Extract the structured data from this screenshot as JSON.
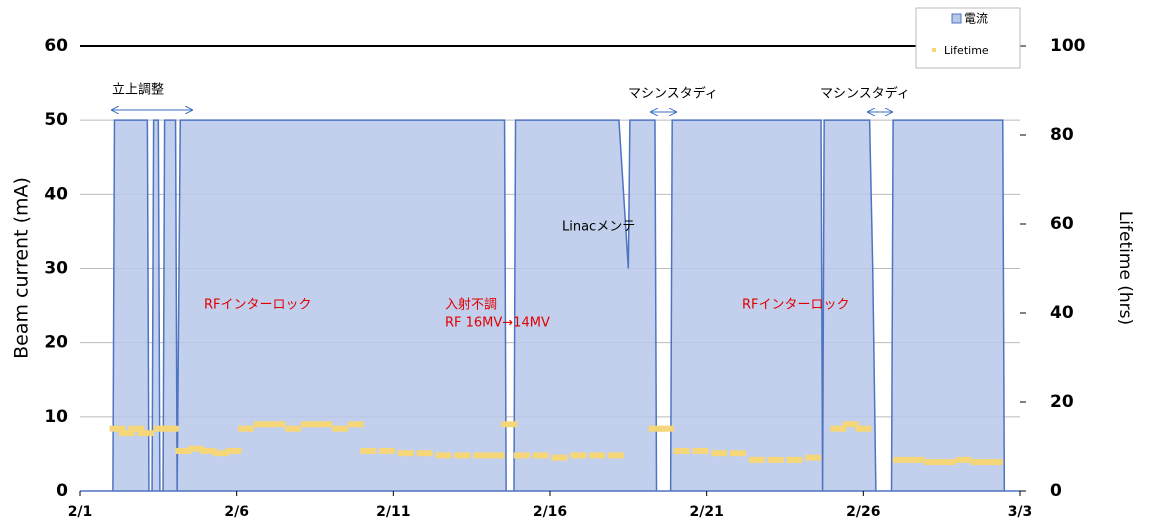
{
  "chart_data": {
    "type": "area",
    "y_label": "Beam current (mA)",
    "y2_label": "Lifetime (hrs)",
    "xlim": [
      0,
      30
    ],
    "xticks": [
      {
        "value": 0,
        "label": "2/1"
      },
      {
        "value": 5,
        "label": "2/6"
      },
      {
        "value": 10,
        "label": "2/11"
      },
      {
        "value": 15,
        "label": "2/16"
      },
      {
        "value": 20,
        "label": "2/21"
      },
      {
        "value": 25,
        "label": "2/26"
      },
      {
        "value": 30,
        "label": "3/3"
      }
    ],
    "ylim": [
      0,
      60
    ],
    "yticks": [
      0,
      10,
      20,
      30,
      40,
      50,
      60
    ],
    "y2lim": [
      0,
      100
    ],
    "y2ticks": [
      0,
      20,
      40,
      60,
      80,
      100
    ],
    "grid": true,
    "annotations": [
      "立上調整",
      "マシンスタディ",
      "マシンスタディ",
      "Linacメンテ",
      "RFインターロック",
      "入射不調",
      "RF 16MV→14MV",
      "RFインターロック"
    ],
    "series": [
      {
        "name": "電流",
        "kind": "area",
        "color": "#4f74c0",
        "x": [
          0,
          1.05,
          1.1,
          2.15,
          2.2,
          2.3,
          2.35,
          2.5,
          2.55,
          2.65,
          2.7,
          3.05,
          3.1,
          3.2,
          13.55,
          13.6,
          13.85,
          13.9,
          17.2,
          17.5,
          17.55,
          18.35,
          18.4,
          18.85,
          18.9,
          23.65,
          23.7,
          23.75,
          25.2,
          25.3,
          25.4,
          25.9,
          25.95,
          29.45,
          29.5,
          30
        ],
        "values": [
          0,
          0,
          50,
          50,
          0,
          0,
          50,
          50,
          0,
          0,
          50,
          50,
          0,
          50,
          50,
          0,
          0,
          50,
          50,
          30,
          50,
          50,
          0,
          0,
          50,
          50,
          0,
          50,
          50,
          30,
          0,
          0,
          50,
          50,
          0,
          0
        ]
      },
      {
        "name": "Lifetime",
        "kind": "scatter",
        "axis": "y2",
        "color": "#f5d77a",
        "x": [
          1.2,
          1.5,
          1.8,
          2.1,
          2.6,
          2.9,
          3.3,
          3.7,
          4.1,
          4.5,
          4.9,
          5.3,
          5.8,
          6.3,
          6.8,
          7.3,
          7.8,
          8.3,
          8.8,
          9.2,
          9.8,
          10.4,
          11,
          11.6,
          12.2,
          12.8,
          13.3,
          13.7,
          14.1,
          14.7,
          15.3,
          15.9,
          16.5,
          17.1,
          18.4,
          18.7,
          19.2,
          19.8,
          20.4,
          21,
          21.6,
          22.2,
          22.8,
          23.4,
          24.2,
          24.6,
          25,
          26.2,
          26.7,
          27.2,
          27.7,
          28.2,
          28.7,
          29.2
        ],
        "values": [
          14,
          13,
          14,
          13,
          14,
          14,
          9,
          9.5,
          9,
          8.5,
          9,
          14,
          15,
          15,
          14,
          15,
          15,
          14,
          15,
          9,
          9,
          8.5,
          8.5,
          8,
          8,
          8,
          8,
          15,
          8,
          8,
          7.5,
          8,
          8,
          8,
          14,
          14,
          9,
          9,
          8.5,
          8.5,
          7,
          7,
          7,
          7.5,
          14,
          15,
          14,
          7,
          7,
          6.5,
          6.5,
          7,
          6.5,
          6.5
        ]
      }
    ]
  }
}
